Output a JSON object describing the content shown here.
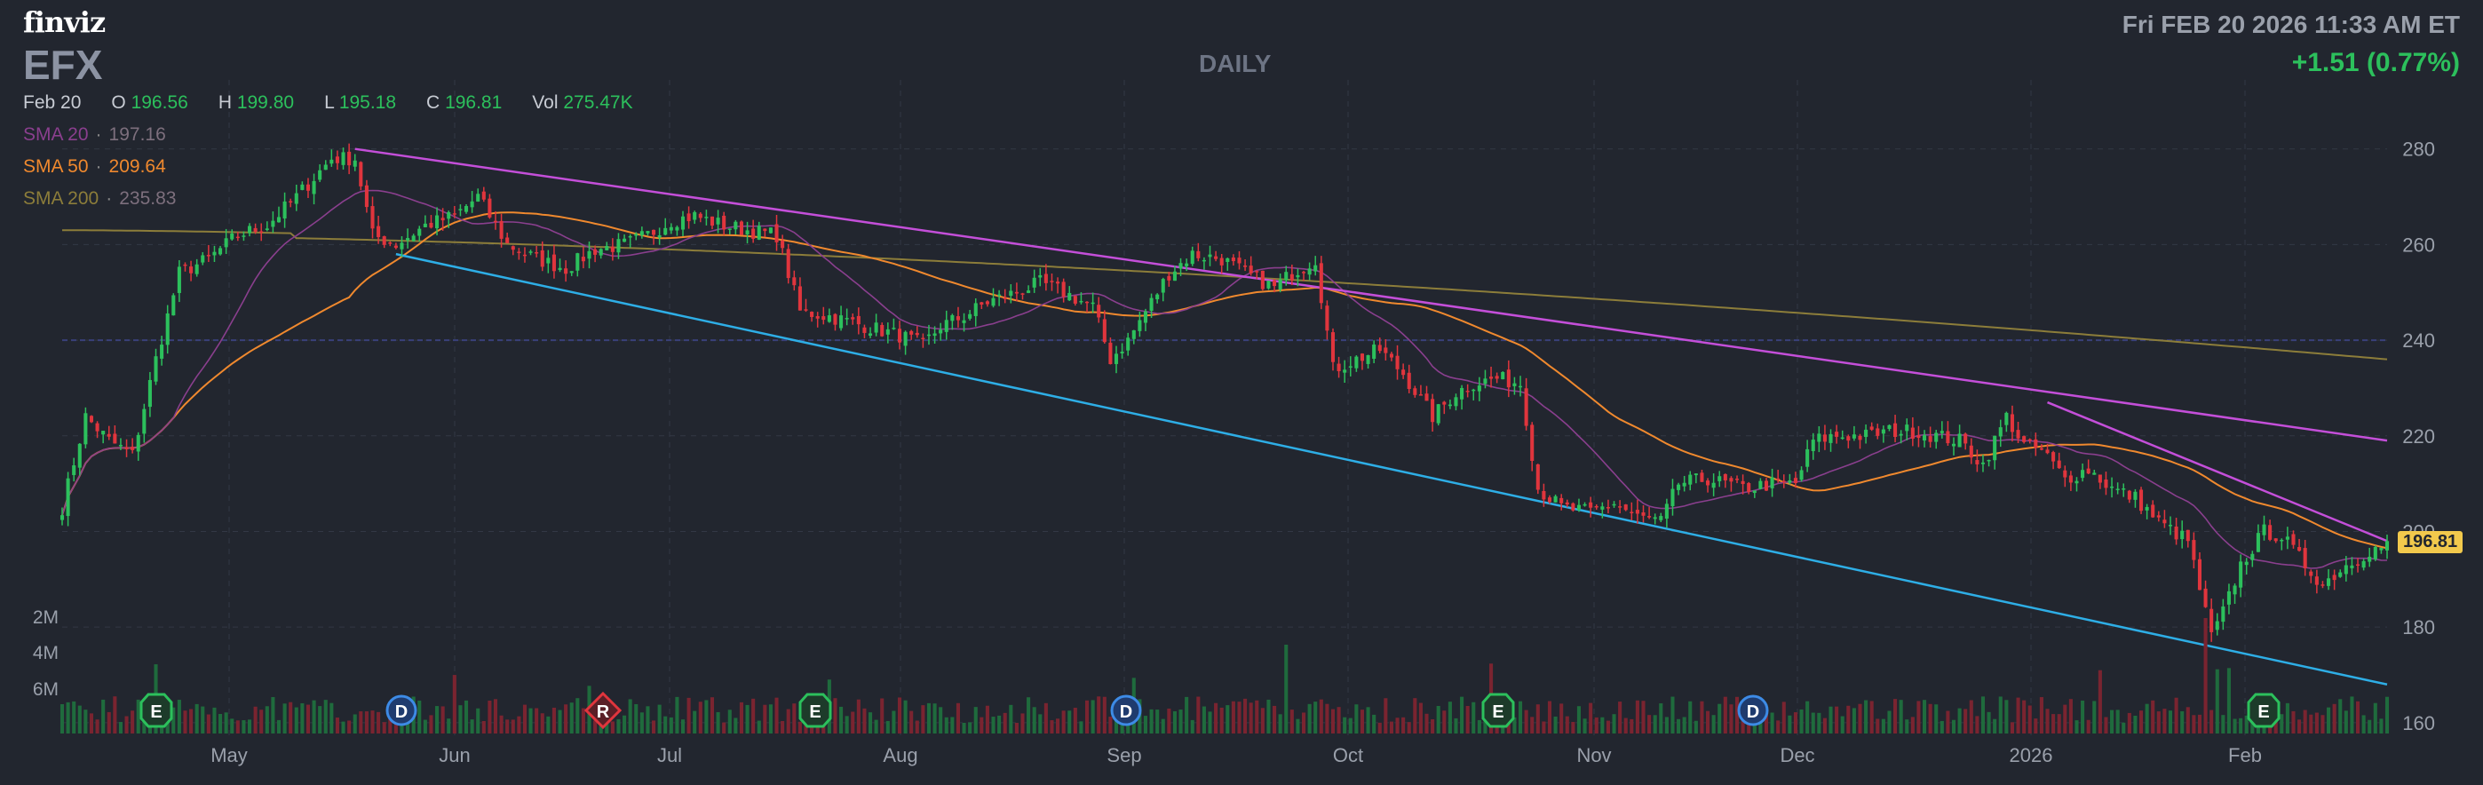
{
  "header": {
    "logo": "finviz",
    "ticker": "EFX",
    "period": "DAILY",
    "datetime": "Fri FEB 20 2026 11:33 AM ET",
    "change": "+1.51 (0.77%)"
  },
  "ohlc": {
    "date": "Feb 20",
    "open_label": "O",
    "open": "196.56",
    "high_label": "H",
    "high": "199.80",
    "low_label": "L",
    "low": "195.18",
    "close_label": "C",
    "close": "196.81",
    "vol_label": "Vol",
    "vol": "275.47K"
  },
  "indicators": [
    {
      "label": "SMA 20",
      "value": "197.16",
      "color": "#8a3f8e"
    },
    {
      "label": "SMA 50",
      "value": "209.64",
      "color": "#f0892e"
    },
    {
      "label": "SMA 200",
      "value": "235.83",
      "color": "#8c7d3a"
    }
  ],
  "price_tag": "196.81",
  "colors": {
    "up": "#2cc05c",
    "down": "#e0353d",
    "grid": "#333845",
    "upper_channel": "#c44fd9",
    "lower_channel": "#2eaee6"
  },
  "chart_data": {
    "type": "candlestick",
    "y_ticks": [
      160,
      180,
      200,
      220,
      240,
      260,
      280
    ],
    "ylim": [
      157,
      287
    ],
    "volume_ticks": [
      "2M",
      "4M",
      "6M"
    ],
    "x_tick_labels": [
      "May",
      "Jun",
      "Jul",
      "Aug",
      "Sep",
      "Oct",
      "Nov",
      "Dec",
      "2026",
      "Feb"
    ],
    "events": [
      {
        "label": "E",
        "kind": "earnings",
        "month": "Apr"
      },
      {
        "label": "D",
        "kind": "dividend",
        "month": "May"
      },
      {
        "label": "R",
        "kind": "rating",
        "month": "Jun"
      },
      {
        "label": "E",
        "kind": "earnings",
        "month": "Jul"
      },
      {
        "label": "D",
        "kind": "dividend",
        "month": "Aug"
      },
      {
        "label": "E",
        "kind": "earnings",
        "month": "Oct"
      },
      {
        "label": "D",
        "kind": "dividend",
        "month": "Nov"
      },
      {
        "label": "E",
        "kind": "earnings",
        "month": "Feb"
      }
    ],
    "trendlines": [
      {
        "name": "upper",
        "from": 280,
        "to": 219
      },
      {
        "name": "lower",
        "from": 258,
        "to": 168
      }
    ],
    "anchors": [
      [
        0,
        205
      ],
      [
        4,
        224
      ],
      [
        8,
        219
      ],
      [
        12,
        216
      ],
      [
        16,
        236
      ],
      [
        20,
        254
      ],
      [
        25,
        257
      ],
      [
        30,
        262
      ],
      [
        35,
        264
      ],
      [
        40,
        270
      ],
      [
        46,
        278
      ],
      [
        50,
        278
      ],
      [
        53,
        262
      ],
      [
        57,
        260
      ],
      [
        62,
        264
      ],
      [
        67,
        266
      ],
      [
        71,
        270
      ],
      [
        76,
        260
      ],
      [
        81,
        257
      ],
      [
        86,
        255
      ],
      [
        91,
        259
      ],
      [
        96,
        260
      ],
      [
        100,
        262
      ],
      [
        104,
        265
      ],
      [
        108,
        266
      ],
      [
        113,
        264
      ],
      [
        117,
        263
      ],
      [
        122,
        262
      ],
      [
        126,
        246
      ],
      [
        131,
        245
      ],
      [
        137,
        243
      ],
      [
        143,
        241
      ],
      [
        147,
        239
      ],
      [
        150,
        243
      ],
      [
        154,
        245
      ],
      [
        158,
        248
      ],
      [
        163,
        250
      ],
      [
        167,
        252
      ],
      [
        171,
        250
      ],
      [
        176,
        247
      ],
      [
        179,
        236
      ],
      [
        182,
        240
      ],
      [
        186,
        248
      ],
      [
        189,
        254
      ],
      [
        193,
        258
      ],
      [
        198,
        257
      ],
      [
        202,
        254
      ],
      [
        207,
        251
      ],
      [
        210,
        254
      ],
      [
        214,
        257
      ],
      [
        217,
        234
      ],
      [
        221,
        236
      ],
      [
        225,
        238
      ],
      [
        229,
        233
      ],
      [
        234,
        224
      ],
      [
        238,
        229
      ],
      [
        241,
        231
      ],
      [
        245,
        232
      ],
      [
        249,
        231
      ],
      [
        252,
        209
      ],
      [
        256,
        205
      ],
      [
        261,
        204
      ],
      [
        265,
        206
      ],
      [
        269,
        203
      ],
      [
        273,
        202
      ],
      [
        276,
        210
      ],
      [
        281,
        211
      ],
      [
        287,
        209
      ],
      [
        292,
        210
      ],
      [
        296,
        210
      ],
      [
        299,
        219
      ],
      [
        303,
        220
      ],
      [
        308,
        220
      ],
      [
        312,
        221
      ],
      [
        316,
        221
      ],
      [
        320,
        220
      ],
      [
        324,
        219
      ],
      [
        328,
        214
      ],
      [
        332,
        224
      ],
      [
        335,
        218
      ],
      [
        338,
        217
      ],
      [
        342,
        211
      ],
      [
        346,
        213
      ],
      [
        350,
        209
      ],
      [
        354,
        207
      ],
      [
        358,
        202
      ],
      [
        363,
        198
      ],
      [
        367,
        178
      ],
      [
        369,
        183
      ],
      [
        372,
        193
      ],
      [
        376,
        200
      ],
      [
        379,
        199
      ],
      [
        383,
        193
      ],
      [
        386,
        189
      ],
      [
        390,
        193
      ],
      [
        394,
        196
      ],
      [
        397,
        197
      ]
    ]
  }
}
